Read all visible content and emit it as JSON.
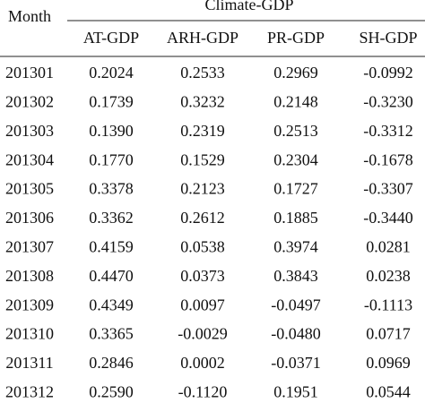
{
  "table": {
    "row_header": "Month",
    "group_header": "Climate-GDP",
    "columns": [
      "AT-GDP",
      "ARH-GDP",
      "PR-GDP",
      "SH-GDP"
    ],
    "rows": [
      [
        "201301",
        "0.2024",
        "0.2533",
        "0.2969",
        "-0.0992"
      ],
      [
        "201302",
        "0.1739",
        "0.3232",
        "0.2148",
        "-0.3230"
      ],
      [
        "201303",
        "0.1390",
        "0.2319",
        "0.2513",
        "-0.3312"
      ],
      [
        "201304",
        "0.1770",
        "0.1529",
        "0.2304",
        "-0.1678"
      ],
      [
        "201305",
        "0.3378",
        "0.2123",
        "0.1727",
        "-0.3307"
      ],
      [
        "201306",
        "0.3362",
        "0.2612",
        "0.1885",
        "-0.3440"
      ],
      [
        "201307",
        "0.4159",
        "0.0538",
        "0.3974",
        "0.0281"
      ],
      [
        "201308",
        "0.4470",
        "0.0373",
        "0.3843",
        "0.0238"
      ],
      [
        "201309",
        "0.4349",
        "0.0097",
        "-0.0497",
        "-0.1113"
      ],
      [
        "201310",
        "0.3365",
        "-0.0029",
        "-0.0480",
        "0.0717"
      ],
      [
        "201311",
        "0.2846",
        "0.0002",
        "-0.0371",
        "0.0969"
      ],
      [
        "201312",
        "0.2590",
        "-0.1120",
        "0.1951",
        "0.0544"
      ]
    ]
  }
}
